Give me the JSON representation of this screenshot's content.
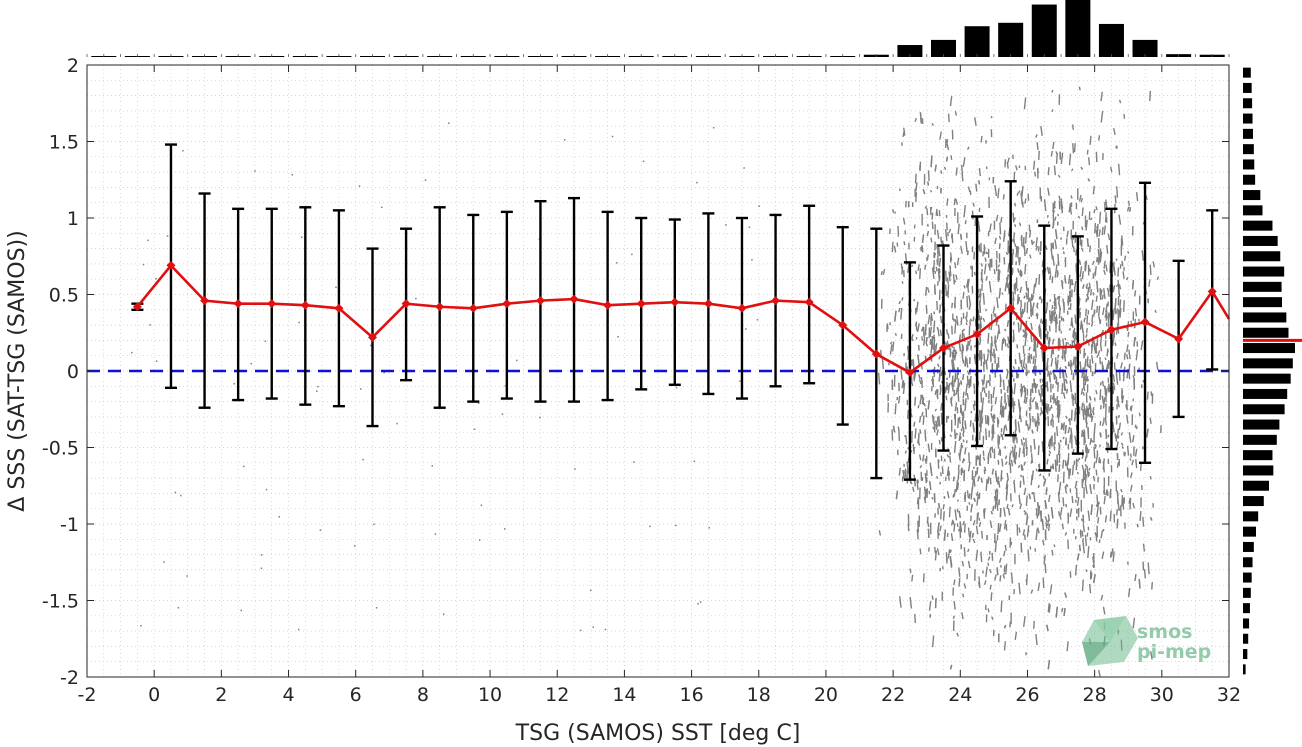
{
  "chart_data": {
    "type": "scatter",
    "xlabel": "TSG (SAMOS) SST [deg C]",
    "ylabel": "Δ SSS (SAT-TSG (SAMOS))",
    "xlim": [
      -2,
      32
    ],
    "ylim": [
      -2,
      2
    ],
    "x_ticks": [
      "-2",
      "0",
      "2",
      "4",
      "6",
      "8",
      "10",
      "12",
      "14",
      "16",
      "18",
      "20",
      "22",
      "24",
      "26",
      "28",
      "30",
      "32"
    ],
    "y_ticks": [
      "2",
      "1.5",
      "1",
      "0.5",
      "0",
      "-0.5",
      "-1",
      "-1.5",
      "-2"
    ],
    "grid": true,
    "reference_line": {
      "y": 0,
      "color": "#1010d0",
      "style": "dashed"
    },
    "scatter_cloud": {
      "x_range": [
        21.5,
        30.0
      ],
      "y_range": [
        -2,
        1.9
      ],
      "color": "#808080"
    },
    "series": [
      {
        "color": "#e01010",
        "x": [
          -0.5,
          0.5,
          1.5,
          2.5,
          3.5,
          4.5,
          5.5,
          6.5,
          7.5,
          8.5,
          9.5,
          10.5,
          11.5,
          12.5,
          13.5,
          14.5,
          15.5,
          16.5,
          17.5,
          18.5,
          19.5,
          20.5,
          21.5,
          22.5,
          23.5,
          24.5,
          25.5,
          26.5,
          27.5,
          28.5,
          29.5,
          30.5,
          31.5,
          32.0
        ],
        "y": [
          0.42,
          0.69,
          0.46,
          0.44,
          0.44,
          0.43,
          0.41,
          0.22,
          0.44,
          0.42,
          0.41,
          0.44,
          0.46,
          0.47,
          0.43,
          0.44,
          0.45,
          0.44,
          0.41,
          0.46,
          0.45,
          0.3,
          0.11,
          -0.01,
          0.15,
          0.24,
          0.41,
          0.15,
          0.16,
          0.27,
          0.32,
          0.21,
          0.52,
          0.34
        ],
        "err_low": [
          0.4,
          -0.11,
          -0.24,
          -0.19,
          -0.18,
          -0.22,
          -0.23,
          -0.36,
          -0.06,
          -0.24,
          -0.2,
          -0.18,
          -0.2,
          -0.2,
          -0.19,
          -0.12,
          -0.09,
          -0.15,
          -0.18,
          -0.1,
          -0.08,
          -0.35,
          -0.7,
          -0.71,
          -0.52,
          -0.49,
          -0.42,
          -0.65,
          -0.54,
          -0.51,
          -0.6,
          -0.3,
          0.01,
          null
        ],
        "err_high": [
          0.44,
          1.48,
          1.16,
          1.06,
          1.06,
          1.07,
          1.05,
          0.8,
          0.93,
          1.07,
          1.02,
          1.04,
          1.11,
          1.13,
          1.04,
          1.0,
          0.99,
          1.03,
          1.0,
          1.02,
          1.08,
          0.94,
          0.93,
          0.71,
          0.82,
          1.01,
          1.24,
          0.95,
          0.88,
          1.06,
          1.23,
          0.72,
          1.05,
          null
        ]
      }
    ],
    "top_histogram": {
      "x_centers": [
        -1.5,
        -0.5,
        0.5,
        1.5,
        2.5,
        3.5,
        4.5,
        5.5,
        6.5,
        7.5,
        8.5,
        9.5,
        10.5,
        11.5,
        12.5,
        13.5,
        14.5,
        15.5,
        16.5,
        17.5,
        18.5,
        19.5,
        20.5,
        21.5,
        22.5,
        23.5,
        24.5,
        25.5,
        26.5,
        27.5,
        28.5,
        29.5,
        30.5,
        31.5
      ],
      "counts": [
        0.002,
        0.002,
        0.002,
        0.002,
        0.002,
        0.002,
        0.002,
        0.002,
        0.002,
        0.002,
        0.002,
        0.002,
        0.002,
        0.002,
        0.002,
        0.002,
        0.002,
        0.002,
        0.002,
        0.002,
        0.002,
        0.002,
        0.002,
        0.04,
        0.21,
        0.3,
        0.54,
        0.6,
        0.92,
        1.0,
        0.58,
        0.3,
        0.05,
        0.04
      ]
    },
    "right_histogram": {
      "y_centers": [
        1.95,
        1.85,
        1.75,
        1.65,
        1.55,
        1.45,
        1.35,
        1.25,
        1.15,
        1.05,
        0.95,
        0.85,
        0.75,
        0.65,
        0.55,
        0.45,
        0.35,
        0.25,
        0.15,
        0.05,
        -0.05,
        -0.15,
        -0.25,
        -0.35,
        -0.45,
        -0.55,
        -0.65,
        -0.75,
        -0.85,
        -0.95,
        -1.05,
        -1.15,
        -1.25,
        -1.35,
        -1.45,
        -1.55,
        -1.65,
        -1.75,
        -1.85,
        -1.95
      ],
      "counts": [
        0.18,
        0.2,
        0.21,
        0.22,
        0.23,
        0.25,
        0.26,
        0.28,
        0.4,
        0.45,
        0.68,
        0.8,
        0.86,
        0.95,
        0.89,
        0.9,
        1.0,
        1.05,
        1.2,
        1.15,
        1.1,
        1.02,
        0.96,
        0.84,
        0.78,
        0.68,
        0.7,
        0.6,
        0.48,
        0.35,
        0.3,
        0.25,
        0.22,
        0.2,
        0.18,
        0.16,
        0.14,
        0.12,
        0.1,
        0.06
      ],
      "mean_line": {
        "y": 0.2,
        "color": "#e01010"
      }
    }
  },
  "watermark": {
    "line1": "smos",
    "line2": "pi-mep"
  }
}
